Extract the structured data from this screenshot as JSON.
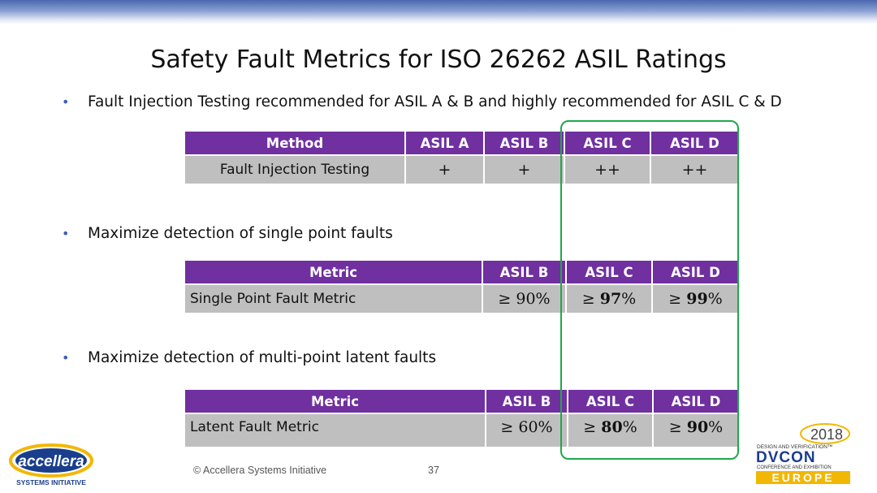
{
  "slide": {
    "title": "Safety Fault Metrics for ISO 26262 ASIL Ratings",
    "bullets": [
      "Fault Injection Testing recommended for ASIL A & B and highly recommended for ASIL C & D",
      "Maximize detection of single point faults",
      "Maximize detection of multi-point latent faults"
    ],
    "bullet_icon": "bullet-dot-icon"
  },
  "table1": {
    "headers": [
      "Method",
      "ASIL A",
      "ASIL B",
      "ASIL C",
      "ASIL D"
    ],
    "row": {
      "name": "Fault Injection Testing",
      "values": [
        "+",
        "+",
        "++",
        "++"
      ]
    }
  },
  "table2": {
    "headers": [
      "Metric",
      "ASIL B",
      "ASIL C",
      "ASIL D"
    ],
    "row": {
      "name": "Single Point Fault Metric",
      "cmp": [
        "≥",
        "≥",
        "≥"
      ],
      "values": [
        "90",
        "97",
        "99"
      ],
      "unit": "%"
    }
  },
  "table3": {
    "headers": [
      "Metric",
      "ASIL B",
      "ASIL C",
      "ASIL D"
    ],
    "row": {
      "name": "Latent Fault Metric",
      "cmp": [
        "≥",
        "≥",
        "≥"
      ],
      "values": [
        "60",
        "80",
        "90"
      ],
      "unit": "%"
    }
  },
  "footer": {
    "copyright": "© Accellera Systems Initiative",
    "page_number": "37"
  },
  "logos": {
    "left_wordmark": "accellera",
    "left_sub": "SYSTEMS INITIATIVE",
    "right_year": "2018",
    "right_tag": "DESIGN AND VERIFICATION™",
    "right_name": "DVCON",
    "right_sub": "CONFERENCE AND EXHIBITION",
    "right_region": "EUROPE"
  },
  "colors": {
    "header_purple": "#7030a0",
    "row_gray": "#bfbfbf",
    "highlight_green": "#1fa84a",
    "bullet_blue": "#3f5fb0"
  }
}
